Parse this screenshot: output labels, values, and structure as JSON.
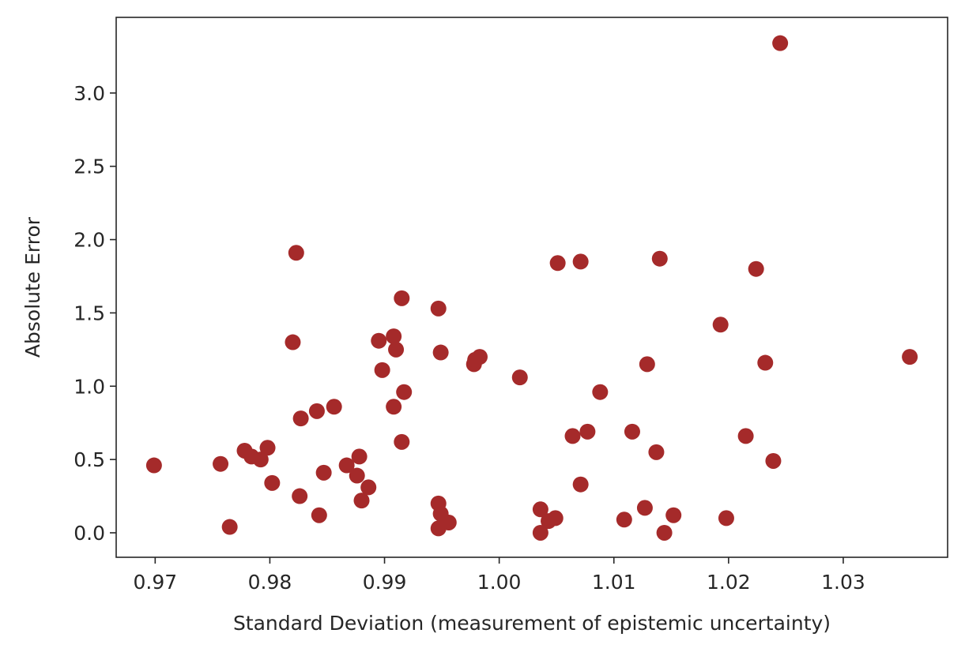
{
  "chart_data": {
    "type": "scatter",
    "title": "",
    "xlabel": "Standard Deviation (measurement of epistemic uncertainty)",
    "ylabel": "Absolute Error",
    "xlim": [
      0.9666,
      1.0391
    ],
    "ylim": [
      -0.167,
      3.516
    ],
    "xticks": [
      0.97,
      0.98,
      0.99,
      1.0,
      1.01,
      1.02,
      1.03
    ],
    "xtick_labels": [
      "0.97",
      "0.98",
      "0.99",
      "1.00",
      "1.01",
      "1.02",
      "1.03"
    ],
    "yticks": [
      0.0,
      0.5,
      1.0,
      1.5,
      2.0,
      2.5,
      3.0
    ],
    "ytick_labels": [
      "0.0",
      "0.5",
      "1.0",
      "1.5",
      "2.0",
      "2.5",
      "3.0"
    ],
    "grid": false,
    "color": "#a52a2a",
    "x": [
      0.9699,
      0.9757,
      0.9765,
      0.9778,
      0.9784,
      0.9792,
      0.9798,
      0.9802,
      0.9823,
      0.982,
      0.9827,
      0.9826,
      0.9841,
      0.9843,
      0.9847,
      0.9856,
      0.9867,
      0.9876,
      0.9878,
      0.988,
      0.9886,
      0.9895,
      0.9898,
      0.9908,
      0.991,
      0.9908,
      0.9915,
      0.9917,
      0.9915,
      0.9947,
      0.9949,
      0.9947,
      0.9949,
      0.9947,
      0.9956,
      0.9978,
      0.9979,
      0.9983,
      1.0018,
      1.0036,
      1.0036,
      1.0043,
      1.0049,
      1.0051,
      1.0071,
      1.0064,
      1.0077,
      1.0071,
      1.0088,
      1.0109,
      1.0116,
      1.0127,
      1.0129,
      1.0137,
      1.014,
      1.0144,
      1.0152,
      1.0193,
      1.0198,
      1.0215,
      1.0224,
      1.0232,
      1.0239,
      1.0245,
      1.0358
    ],
    "y": [
      0.46,
      0.47,
      0.04,
      0.56,
      0.52,
      0.5,
      0.58,
      0.34,
      1.91,
      1.3,
      0.78,
      0.25,
      0.83,
      0.12,
      0.41,
      0.86,
      0.46,
      0.39,
      0.52,
      0.22,
      0.31,
      1.31,
      1.11,
      1.34,
      1.25,
      0.86,
      1.6,
      0.96,
      0.62,
      1.53,
      1.23,
      0.2,
      0.13,
      0.03,
      0.07,
      1.15,
      1.18,
      1.2,
      1.06,
      0.16,
      0.0,
      0.08,
      0.1,
      1.84,
      1.85,
      0.66,
      0.69,
      0.33,
      0.96,
      0.09,
      0.69,
      0.17,
      1.15,
      0.55,
      1.87,
      0.0,
      0.12,
      1.42,
      0.1,
      0.66,
      1.8,
      1.16,
      0.49,
      3.34,
      1.2
    ]
  }
}
